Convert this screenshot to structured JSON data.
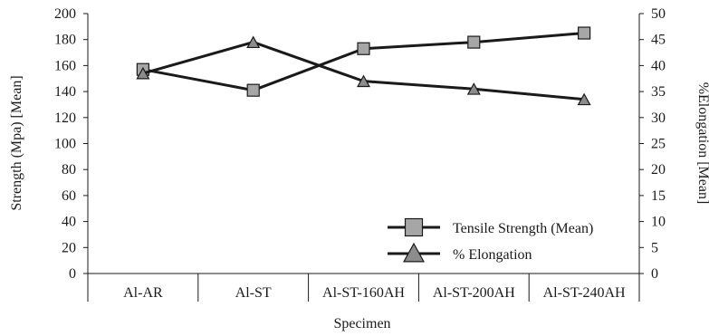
{
  "chart_data": {
    "type": "line",
    "categories": [
      "Al-AR",
      "Al-ST",
      "Al-ST-160AH",
      "Al-ST-200AH",
      "Al-ST-240AH"
    ],
    "xlabel": "Specimen",
    "ylabel": "Strength (Mpa) [Mean]",
    "y2label": "%Elongation [Mean]",
    "ylim": [
      0,
      200
    ],
    "y2lim": [
      0,
      50
    ],
    "yticks": [
      "0",
      "20",
      "40",
      "60",
      "80",
      "100",
      "120",
      "140",
      "160",
      "180",
      "200"
    ],
    "y2ticks": [
      "0",
      "5",
      "10",
      "15",
      "20",
      "25",
      "30",
      "35",
      "40",
      "45",
      "50"
    ],
    "series": [
      {
        "name": "Tensile Strength (Mean)",
        "axis": "left",
        "marker": "square",
        "values": [
          157,
          141,
          173,
          178,
          185
        ]
      },
      {
        "name": "% Elongation",
        "axis": "right",
        "marker": "triangle",
        "values": [
          38.5,
          44.5,
          37.0,
          35.5,
          33.5
        ]
      }
    ],
    "legend_position": "bottom-right",
    "grid": false
  }
}
